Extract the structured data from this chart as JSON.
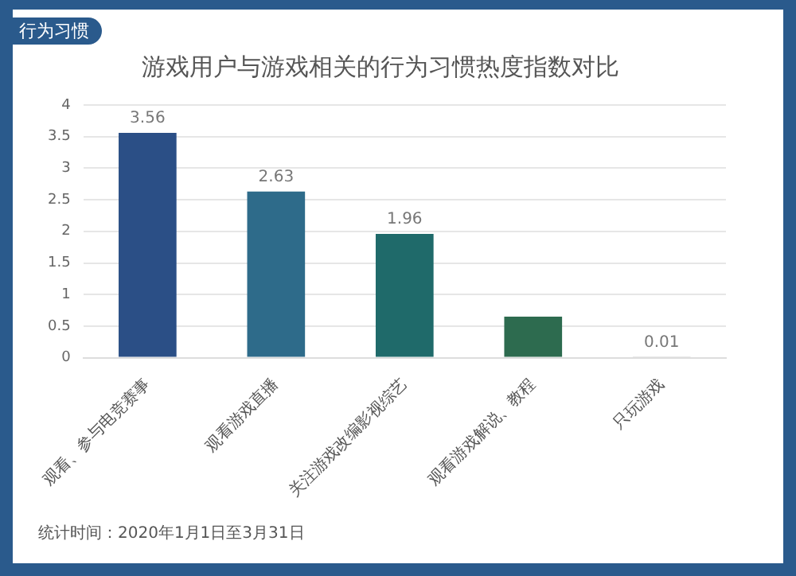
{
  "chart_data": {
    "type": "bar",
    "title": "游戏用户与游戏相关的行为习惯热度指数对比",
    "categories": [
      "观看、参与电竞赛事",
      "观看游戏直播",
      "关注游戏改编影视综艺",
      "观看游戏解说、教程",
      "只玩游戏"
    ],
    "values": [
      3.56,
      2.63,
      1.96,
      0.65,
      0.01
    ],
    "value_labels": [
      "3.56",
      "2.63",
      "1.96",
      null,
      "0.01"
    ],
    "colors": [
      "#2b4f86",
      "#2e6b8a",
      "#1f6a6a",
      "#2d6b4f",
      "#a9a9a9"
    ],
    "ylim": [
      0,
      4
    ],
    "yticks": [
      0,
      0.5,
      1,
      1.5,
      2,
      2.5,
      3,
      3.5,
      4
    ],
    "grid": "y",
    "annotations": [
      "行为习惯",
      "统计时间：2020年1月1日至3月31日"
    ]
  }
}
